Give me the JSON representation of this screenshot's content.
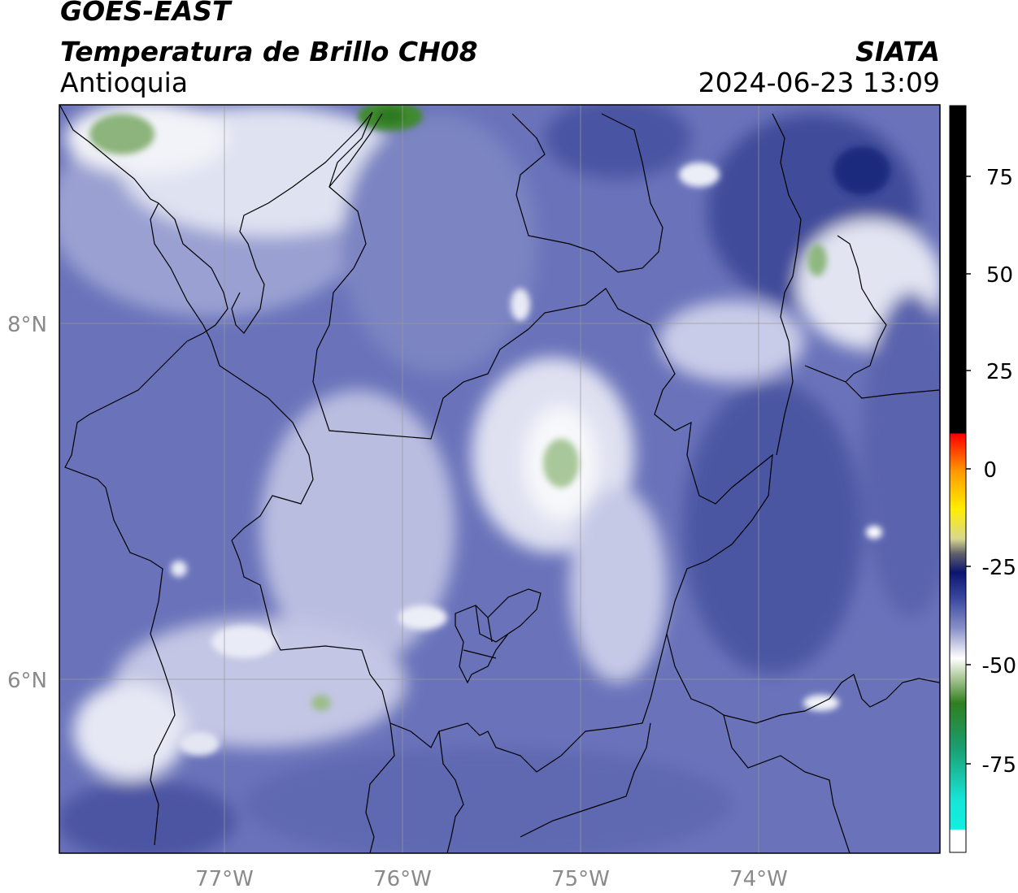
{
  "header": {
    "satellite": "GOES-EAST",
    "product": "Temperatura de Brillo CH08",
    "region": "Antioquia",
    "organization": "SIATA",
    "timestamp": "2024-06-23 13:09"
  },
  "map": {
    "longitude_labels": [
      "77°W",
      "76°W",
      "75°W",
      "74°W"
    ],
    "latitude_labels": [
      "8°N",
      "6°N"
    ],
    "extent": {
      "lon_min": -77.95,
      "lon_max": -73.0,
      "lat_min": 5.02,
      "lat_max": 9.22
    },
    "gridlines": true
  },
  "colorbar": {
    "tick_labels": [
      "75",
      "50",
      "25",
      "0",
      "-25",
      "-50",
      "-75"
    ],
    "range": [
      -95,
      90
    ],
    "colors": {
      "high": "#000000",
      "red": "#ff0000",
      "orange": "#ff9900",
      "yellow": "#ffee00",
      "navy": "#0d1a7a",
      "blue": "#4a55a8",
      "white": "#ffffff",
      "green": "#2f7f1f",
      "cyan": "#18e5d8"
    }
  }
}
